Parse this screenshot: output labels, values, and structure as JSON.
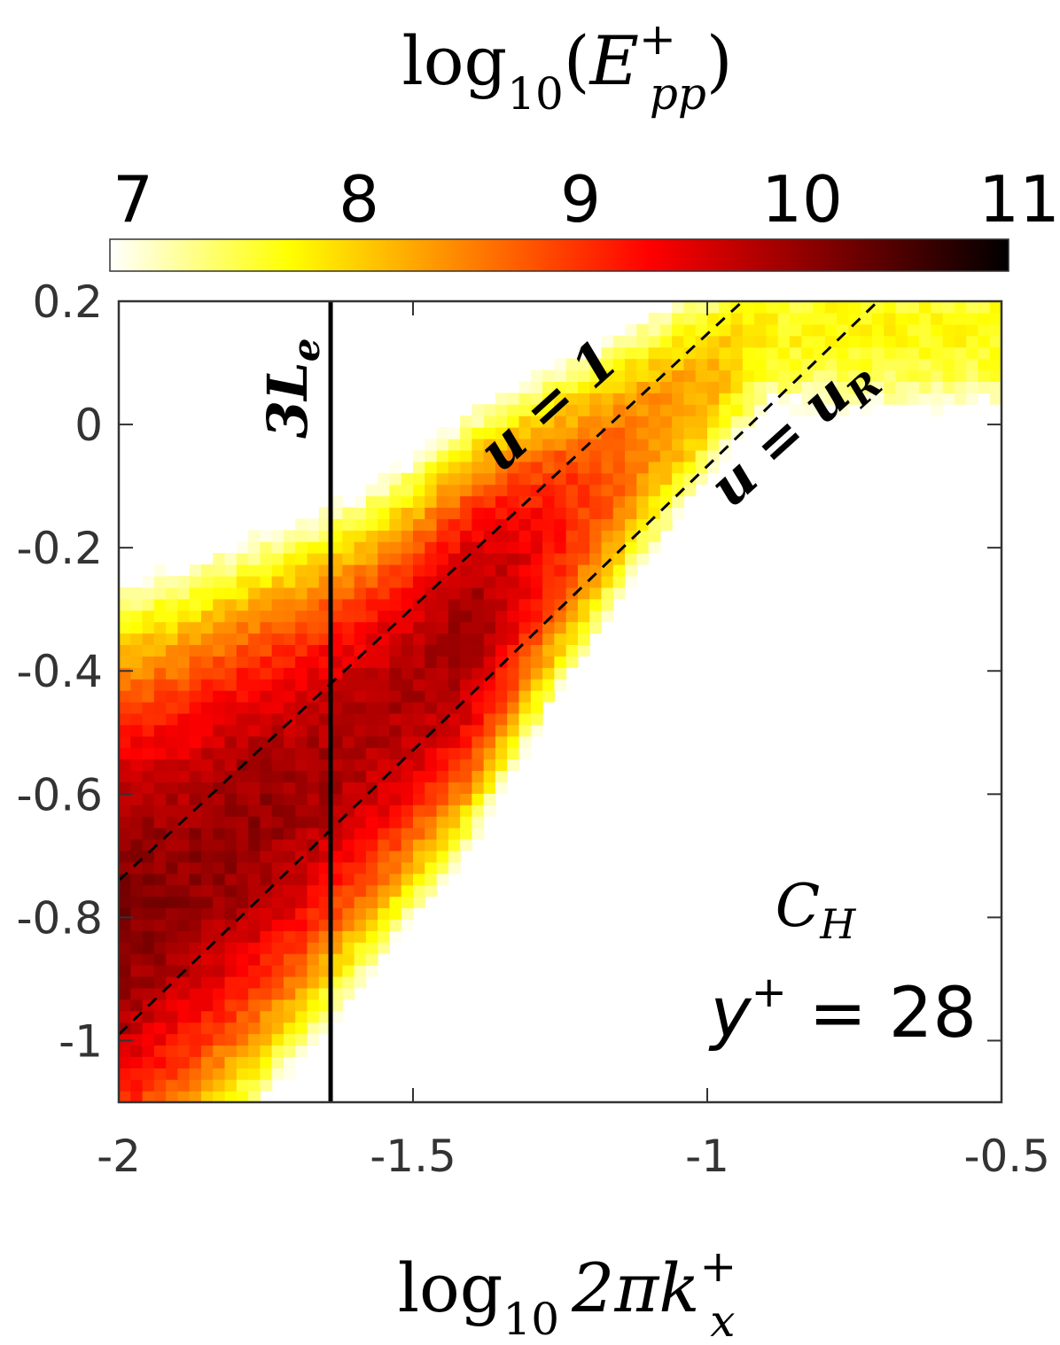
{
  "chart_data": {
    "type": "heatmap",
    "colorbar": {
      "title_base": "log",
      "title_sub": "10",
      "title_var": "E",
      "title_sup": "+",
      "title_var_sub": "pp",
      "range": [
        7,
        11
      ],
      "ticks": [
        "7",
        "8",
        "9",
        "10",
        "11"
      ],
      "colormap": "hot",
      "colors": [
        "#ffffff",
        "#ffff00",
        "#ff8000",
        "#ff0000",
        "#800000",
        "#000000"
      ]
    },
    "xlabel_base": "log",
    "xlabel_sub": "10",
    "xlabel_rest": "2πk",
    "xlabel_sup": "+",
    "xlabel_var_sub": "x",
    "xlim": [
      -2,
      -0.5
    ],
    "ylim": [
      -1.1,
      0.2
    ],
    "xticks": [
      "-2",
      "-1.5",
      "-1",
      "-0.5"
    ],
    "yticks": [
      "0.2",
      "0",
      "-0.2",
      "-0.4",
      "-0.6",
      "-0.8",
      "-1"
    ],
    "grid": false,
    "lines": [
      {
        "label_main": "3L",
        "label_sub": "e",
        "style": "solid",
        "x": [
          -1.64,
          -1.64
        ],
        "y": [
          -1.1,
          0.2
        ]
      },
      {
        "label_main": "u = 1",
        "label_sub": "",
        "style": "dashed",
        "x": [
          -2,
          -0.94
        ],
        "y": [
          -0.74,
          0.2
        ]
      },
      {
        "label_main": "u = u",
        "label_sub": "R",
        "style": "dashed",
        "x": [
          -2,
          -0.71
        ],
        "y": [
          -0.99,
          0.2
        ]
      }
    ],
    "annotation": {
      "case_main": "C",
      "case_sub": "H",
      "yplus_var": "y",
      "yplus_sup": "+",
      "yplus_rest": " = 28"
    },
    "ridge": [
      {
        "x": -2.0,
        "y": -0.8,
        "peak": 10.2
      },
      {
        "x": -1.9,
        "y": -0.74,
        "peak": 10.1
      },
      {
        "x": -1.8,
        "y": -0.67,
        "peak": 10.1
      },
      {
        "x": -1.7,
        "y": -0.6,
        "peak": 10.0
      },
      {
        "x": -1.6,
        "y": -0.52,
        "peak": 9.9
      },
      {
        "x": -1.5,
        "y": -0.43,
        "peak": 9.9
      },
      {
        "x": -1.4,
        "y": -0.33,
        "peak": 10.0
      },
      {
        "x": -1.3,
        "y": -0.22,
        "peak": 9.5
      },
      {
        "x": -1.2,
        "y": -0.12,
        "peak": 9.0
      },
      {
        "x": -1.1,
        "y": -0.02,
        "peak": 8.6
      },
      {
        "x": -1.0,
        "y": 0.07,
        "peak": 8.3
      },
      {
        "x": -0.9,
        "y": 0.15,
        "peak": 7.8
      }
    ]
  }
}
